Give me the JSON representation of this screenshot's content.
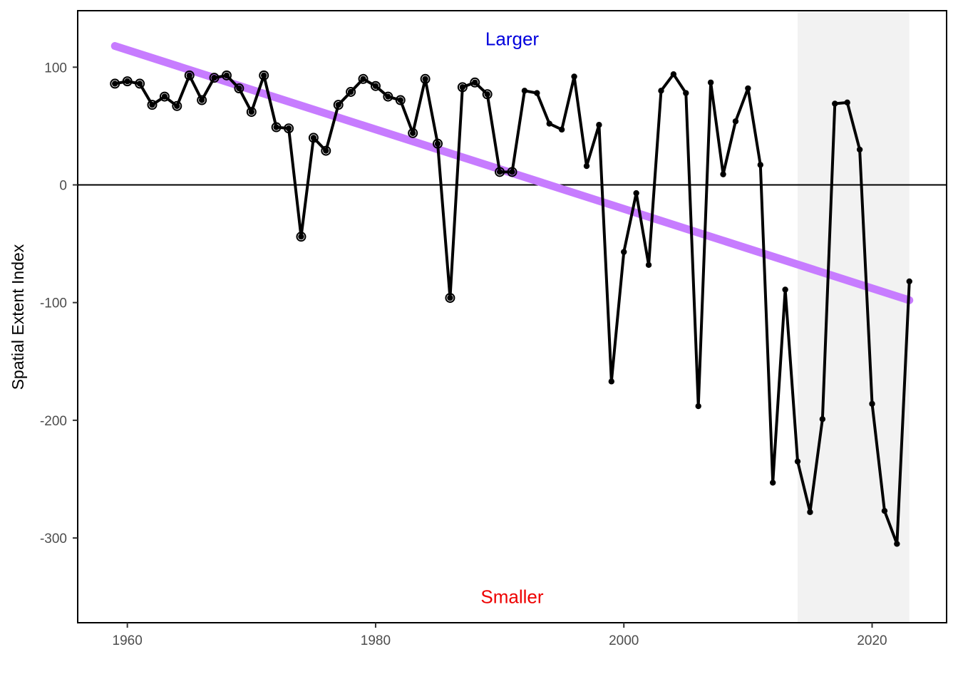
{
  "chart_data": {
    "type": "line",
    "title": "",
    "xlabel": "",
    "ylabel": "Spatial Extent Index",
    "xlim": [
      1956,
      2026
    ],
    "ylim": [
      -372,
      148
    ],
    "x_ticks": [
      1960,
      1980,
      2000,
      2020
    ],
    "y_ticks": [
      100,
      0,
      -100,
      -200,
      -300
    ],
    "grid": false,
    "reference_line_y": 0,
    "shaded_region": {
      "x_start": 2014,
      "x_end": 2023,
      "color": "#f2f2f2"
    },
    "annotations": [
      {
        "text": "Larger",
        "x": 1991,
        "y": 124,
        "color": "#0000dd"
      },
      {
        "text": "Smaller",
        "x": 1991,
        "y": -350,
        "color": "#ee0000"
      }
    ],
    "trend_line": {
      "x": [
        1959,
        2023
      ],
      "y": [
        118,
        -98
      ],
      "color": "#c77cff"
    },
    "series": [
      {
        "line_color": "#000000",
        "x": [
          1959,
          1960,
          1961,
          1962,
          1963,
          1964,
          1965,
          1966,
          1967,
          1968,
          1969,
          1970,
          1971,
          1972,
          1973,
          1974,
          1975,
          1976,
          1977,
          1978,
          1979,
          1980,
          1981,
          1982,
          1983,
          1984,
          1985,
          1986,
          1987,
          1988,
          1989,
          1990,
          1991,
          1992,
          1993,
          1994,
          1995,
          1996,
          1997,
          1998,
          1999,
          2000,
          2001,
          2002,
          2003,
          2004,
          2005,
          2006,
          2007,
          2008,
          2009,
          2010,
          2011,
          2012,
          2013,
          2014,
          2015,
          2016,
          2017,
          2018,
          2019,
          2020,
          2021,
          2022,
          2023
        ],
        "y": [
          86,
          88,
          86,
          68,
          75,
          67,
          93,
          72,
          91,
          93,
          82,
          62,
          93,
          49,
          48,
          -44,
          40,
          29,
          68,
          79,
          90,
          84,
          75,
          72,
          44,
          90,
          35,
          -96,
          83,
          87,
          77,
          11,
          11,
          80,
          78,
          52,
          47,
          92,
          16,
          51,
          -167,
          -57,
          -7,
          -68,
          80,
          94,
          78,
          -188,
          87,
          9,
          54,
          82,
          17,
          -253,
          -89,
          -235,
          -278,
          -199,
          69,
          70,
          30,
          -186,
          -277,
          -305,
          -82
        ],
        "open_markers_until_x": 1991
      }
    ]
  }
}
